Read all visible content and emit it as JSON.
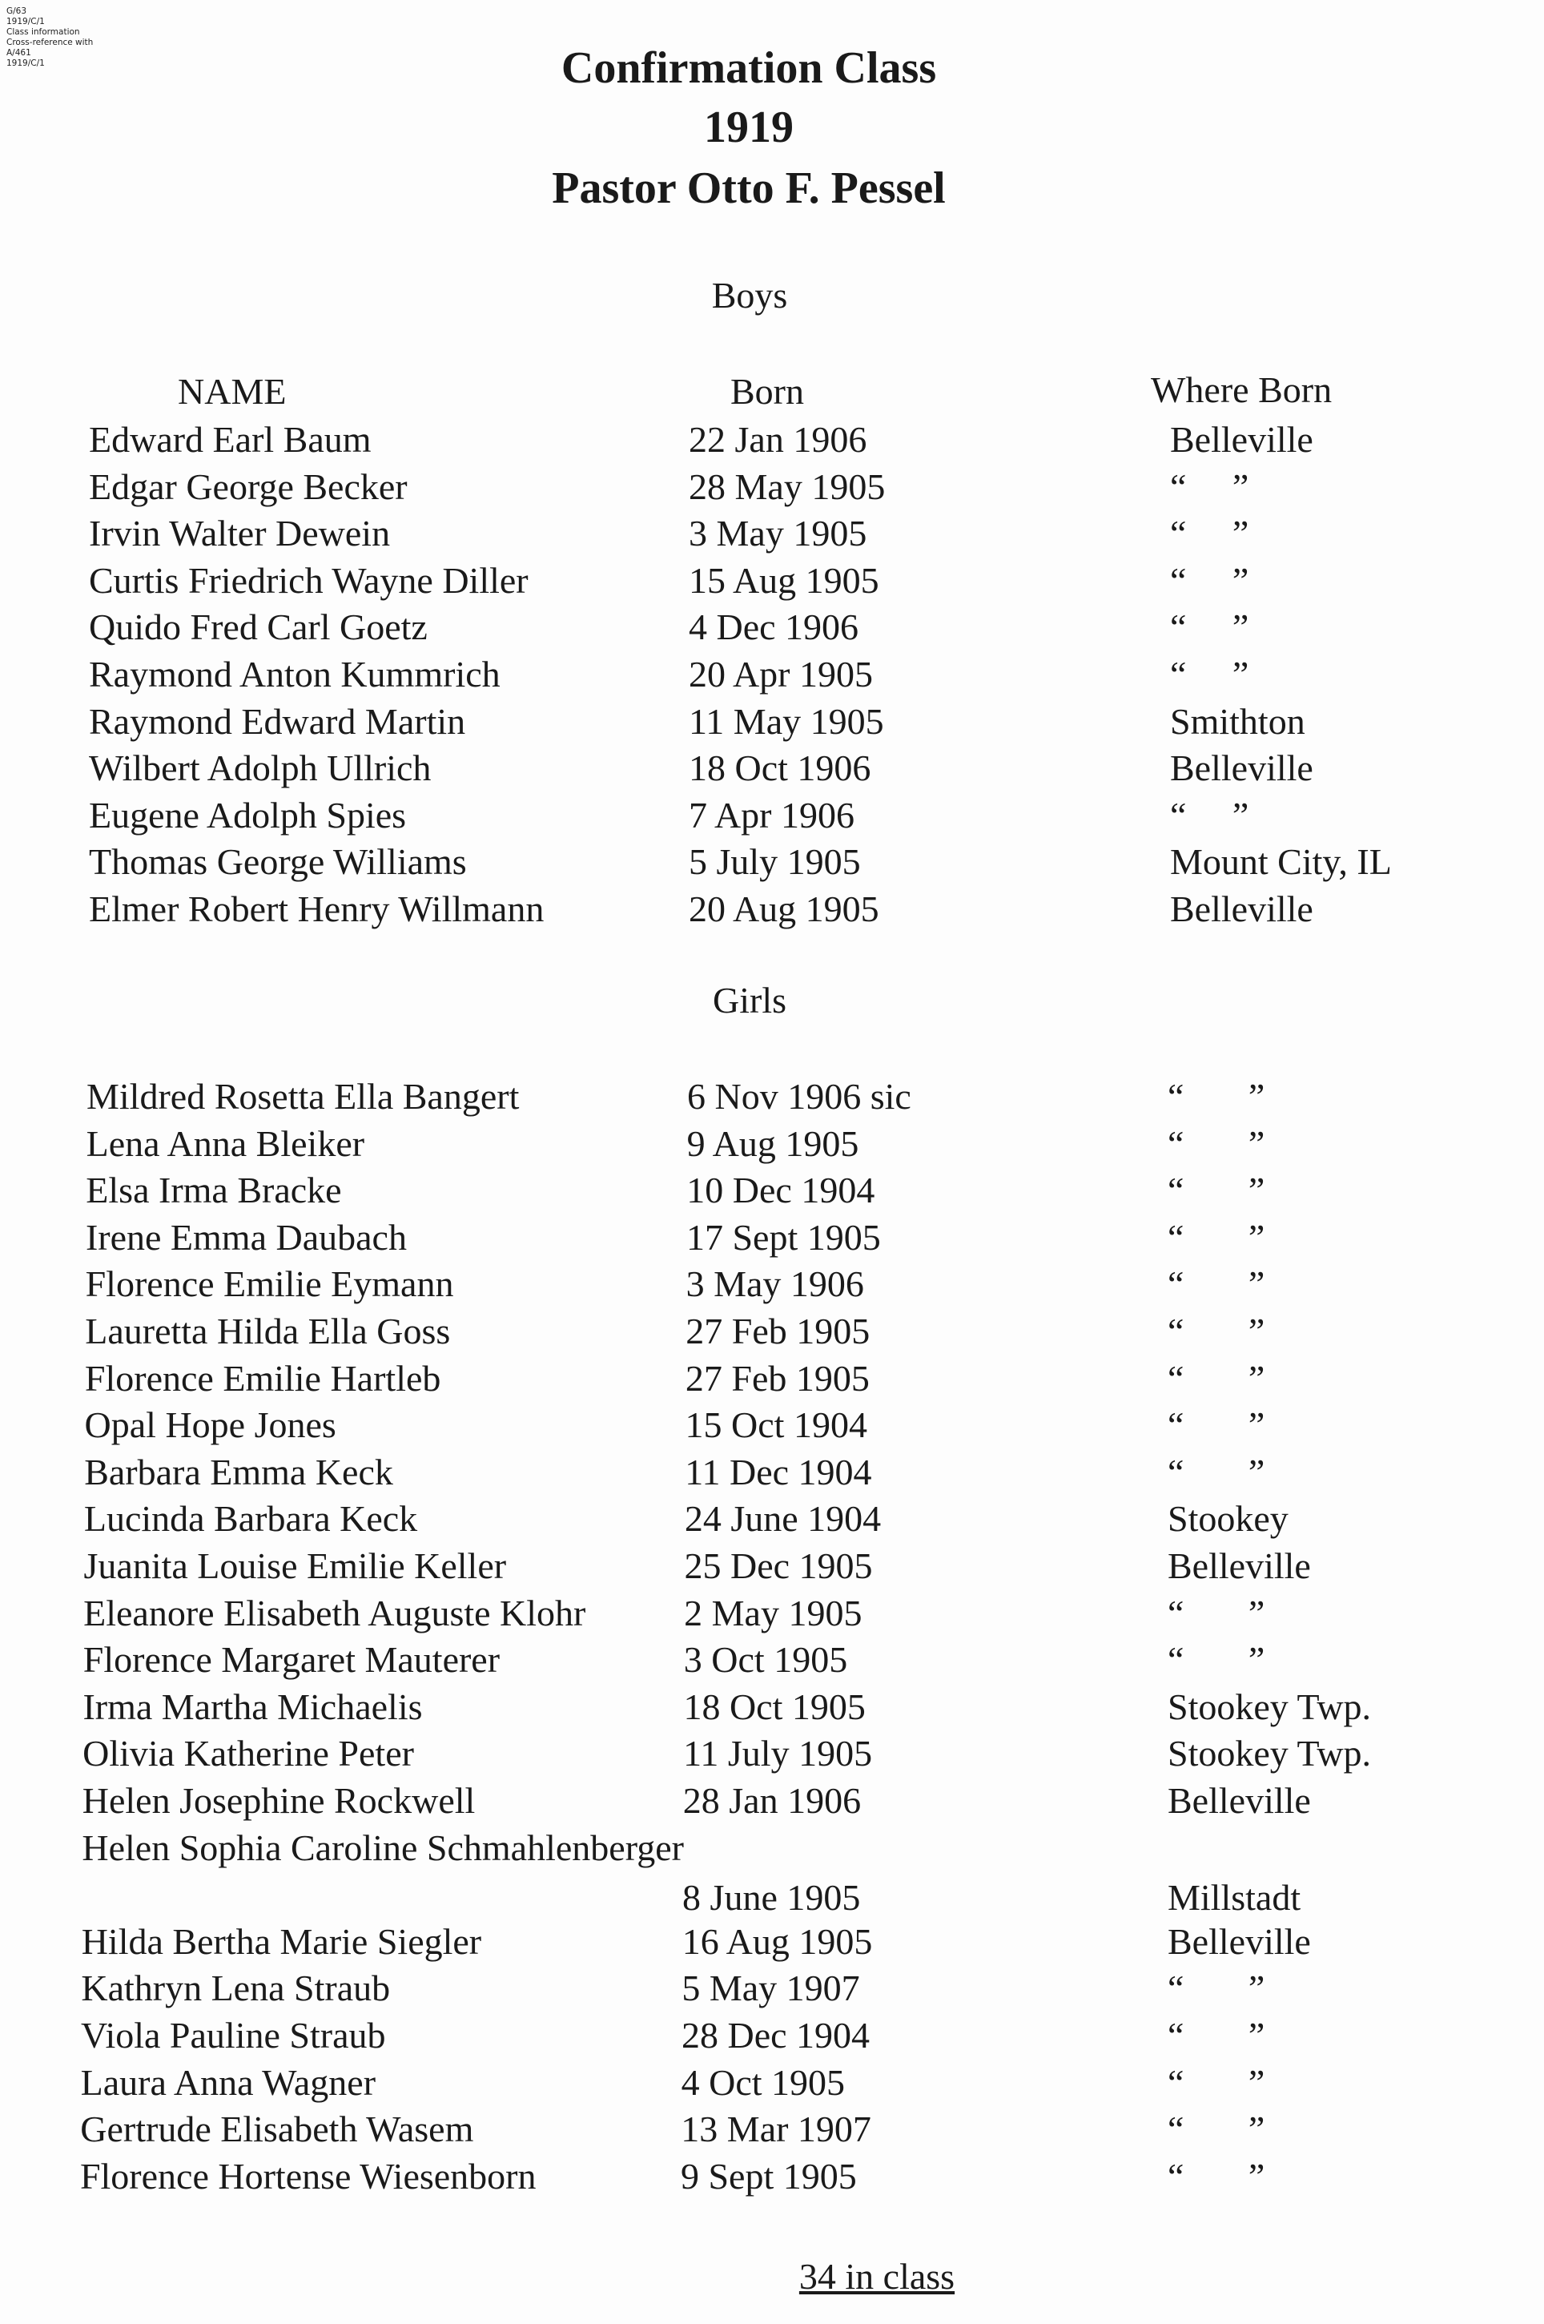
{
  "margin_note": [
    "G/63",
    "1919/C/1",
    "",
    "Class information",
    "",
    "Cross-reference with",
    "A/461",
    "1919/C/1"
  ],
  "title": {
    "line1": "Confirmation Class",
    "line2": "1919",
    "line3": "Pastor Otto F. Pessel"
  },
  "boys_heading": "Boys",
  "girls_heading": "Girls",
  "columns": {
    "name": "NAME",
    "born": "Born",
    "where": "Where Born"
  },
  "boys": [
    {
      "name": "Edward Earl Baum",
      "born": "22 Jan 1906",
      "where": "Belleville"
    },
    {
      "name": "Edgar George Becker",
      "born": "28 May 1905",
      "where": "“     ”"
    },
    {
      "name": "Irvin Walter Dewein",
      "born": "3 May 1905",
      "where": "“     ”"
    },
    {
      "name": "Curtis Friedrich Wayne Diller",
      "born": "15 Aug 1905",
      "where": "“     ”"
    },
    {
      "name": "Quido Fred Carl Goetz",
      "born": "4 Dec 1906",
      "where": "“     ”"
    },
    {
      "name": "Raymond Anton Kummrich",
      "born": "20 Apr 1905",
      "where": "“     ”"
    },
    {
      "name": "Raymond Edward Martin",
      "born": "11 May 1905",
      "where": "Smithton"
    },
    {
      "name": "Wilbert Adolph Ullrich",
      "born": "18 Oct 1906",
      "where": "Belleville"
    },
    {
      "name": "Eugene Adolph Spies",
      "born": "7 Apr 1906",
      "where": "“     ”"
    },
    {
      "name": "Thomas George Williams",
      "born": "5 July 1905",
      "where": "Mount City, IL"
    },
    {
      "name": "Elmer Robert Henry Willmann",
      "born": "20 Aug 1905",
      "where": "Belleville"
    }
  ],
  "girls": [
    {
      "name": "Mildred Rosetta Ella Bangert",
      "born": "6 Nov 1906 sic",
      "where": "“       ”"
    },
    {
      "name": "Lena Anna Bleiker",
      "born": "9 Aug 1905",
      "where": "“       ”"
    },
    {
      "name": "Elsa Irma Bracke",
      "born": "10 Dec 1904",
      "where": "“       ”"
    },
    {
      "name": "Irene Emma Daubach",
      "born": "17 Sept 1905",
      "where": "“       ”"
    },
    {
      "name": "Florence Emilie Eymann",
      "born": "3 May 1906",
      "where": "“       ”"
    },
    {
      "name": "Lauretta Hilda Ella Goss",
      "born": "27 Feb 1905",
      "where": "“       ”"
    },
    {
      "name": "Florence Emilie Hartleb",
      "born": "27 Feb 1905",
      "where": "“       ”"
    },
    {
      "name": "Opal Hope Jones",
      "born": "15 Oct 1904",
      "where": "“       ”"
    },
    {
      "name": "Barbara Emma Keck",
      "born": "11 Dec 1904",
      "where": "“       ”"
    },
    {
      "name": "Lucinda Barbara Keck",
      "born": "24 June 1904",
      "where": "Stookey"
    },
    {
      "name": "Juanita Louise Emilie Keller",
      "born": "25 Dec 1905",
      "where": "Belleville"
    },
    {
      "name": "Eleanore Elisabeth Auguste Klohr",
      "born": "2 May 1905",
      "where": "“       ”"
    },
    {
      "name": "Florence Margaret Mauterer",
      "born": "3 Oct 1905",
      "where": "“       ”"
    },
    {
      "name": "Irma Martha Michaelis",
      "born": "18 Oct 1905",
      "where": "Stookey Twp."
    },
    {
      "name": "Olivia Katherine Peter",
      "born": "11 July 1905",
      "where": "Stookey Twp."
    },
    {
      "name": "Helen Josephine Rockwell",
      "born": "28 Jan 1906",
      "where": "Belleville"
    },
    {
      "name": "Helen Sophia Caroline Schmahlenberger",
      "born": "8 June 1905",
      "where": "Millstadt",
      "wrapped": true
    },
    {
      "name": "Hilda Bertha Marie Siegler",
      "born": "16 Aug 1905",
      "where": "Belleville"
    },
    {
      "name": "Kathryn Lena Straub",
      "born": "5 May 1907",
      "where": "“       ”"
    },
    {
      "name": "Viola Pauline Straub",
      "born": "28 Dec 1904",
      "where": "“       ”"
    },
    {
      "name": "Laura Anna Wagner",
      "born": "4 Oct 1905",
      "where": "“       ”"
    },
    {
      "name": "Gertrude Elisabeth Wasem",
      "born": "13 Mar 1907",
      "where": "“       ”"
    },
    {
      "name": "Florence Hortense Wiesenborn",
      "born": "9 Sept 1905",
      "where": "“       ”"
    }
  ],
  "footer": "34 in class"
}
